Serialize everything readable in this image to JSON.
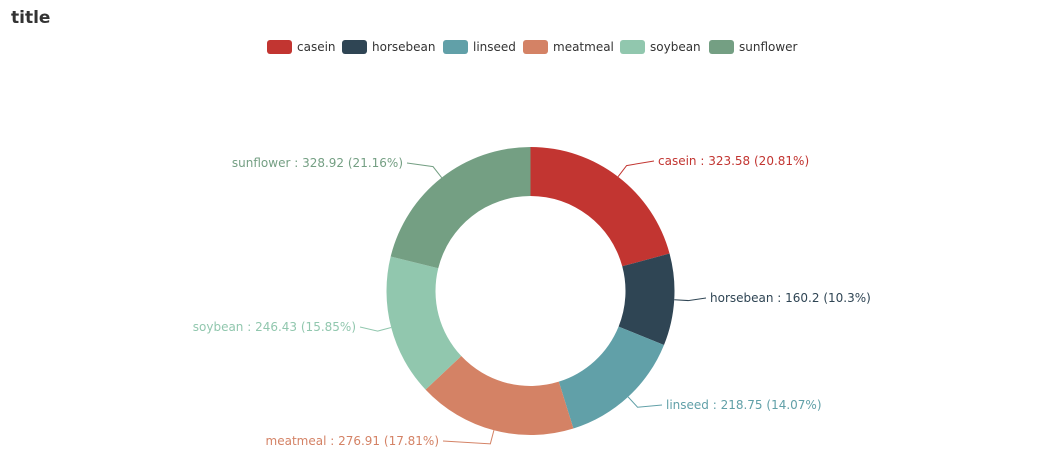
{
  "chart_data": {
    "type": "pie",
    "variant": "donut",
    "title": "title",
    "categories": [
      "casein",
      "horsebean",
      "linseed",
      "meatmeal",
      "soybean",
      "sunflower"
    ],
    "values": [
      323.58,
      160.2,
      218.75,
      276.91,
      246.43,
      328.92
    ],
    "percents": [
      "20.81%",
      "10.3%",
      "14.07%",
      "17.81%",
      "15.85%",
      "21.16%"
    ],
    "labels": [
      "casein : 323.58 (20.81%)",
      "horsebean : 160.2 (10.3%)",
      "linseed : 218.75 (14.07%)",
      "meatmeal : 276.91 (17.81%)",
      "soybean : 246.43 (15.85%)",
      "sunflower : 328.92 (21.16%)"
    ],
    "colors": [
      "#c23531",
      "#2f4554",
      "#61a0a8",
      "#d48265",
      "#91c7ae",
      "#749f83"
    ],
    "legend_position": "top-center"
  }
}
